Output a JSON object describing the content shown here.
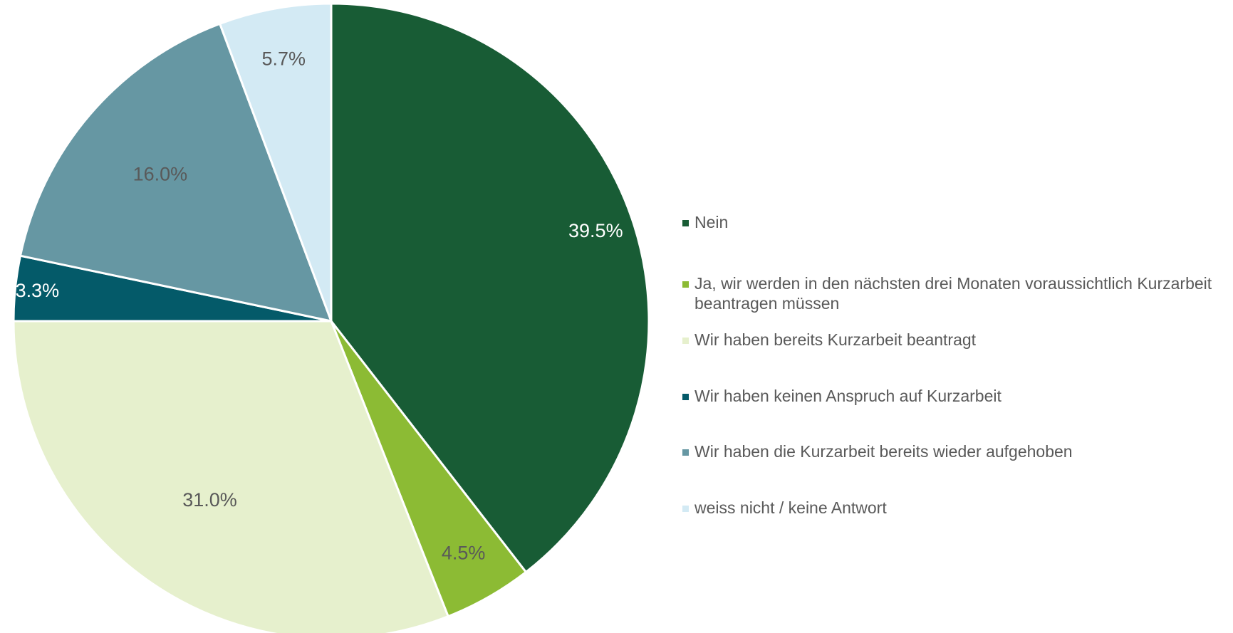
{
  "chart_data": {
    "type": "pie",
    "title": "",
    "start_angle_deg": 0,
    "direction": "clockwise",
    "legend_position": "right",
    "slices": [
      {
        "label": "Nein",
        "value": 39.5,
        "display": "39.5%",
        "color": "#185C35",
        "label_color": "#FFFFFF"
      },
      {
        "label": "Ja, wir werden in den nächsten drei Monaten voraussichtlich Kurzarbeit beantragen müssen",
        "value": 4.5,
        "display": "4.5%",
        "color": "#8CBB34",
        "label_color": "#595959"
      },
      {
        "label": "Wir haben bereits Kurzarbeit beantragt",
        "value": 31.0,
        "display": "31.0%",
        "color": "#E6F0CD",
        "label_color": "#595959"
      },
      {
        "label": "Wir haben keinen Anspruch auf Kurzarbeit",
        "value": 3.3,
        "display": "3.3%",
        "color": "#045A69",
        "label_color": "#FFFFFF"
      },
      {
        "label": "Wir haben die Kurzarbeit bereits wieder aufgehoben",
        "value": 16.0,
        "display": "16.0%",
        "color": "#6697A3",
        "label_color": "#595959"
      },
      {
        "label": "weiss nicht / keine Antwort",
        "value": 5.7,
        "display": "5.7%",
        "color": "#D3EAF4",
        "label_color": "#595959"
      }
    ]
  }
}
